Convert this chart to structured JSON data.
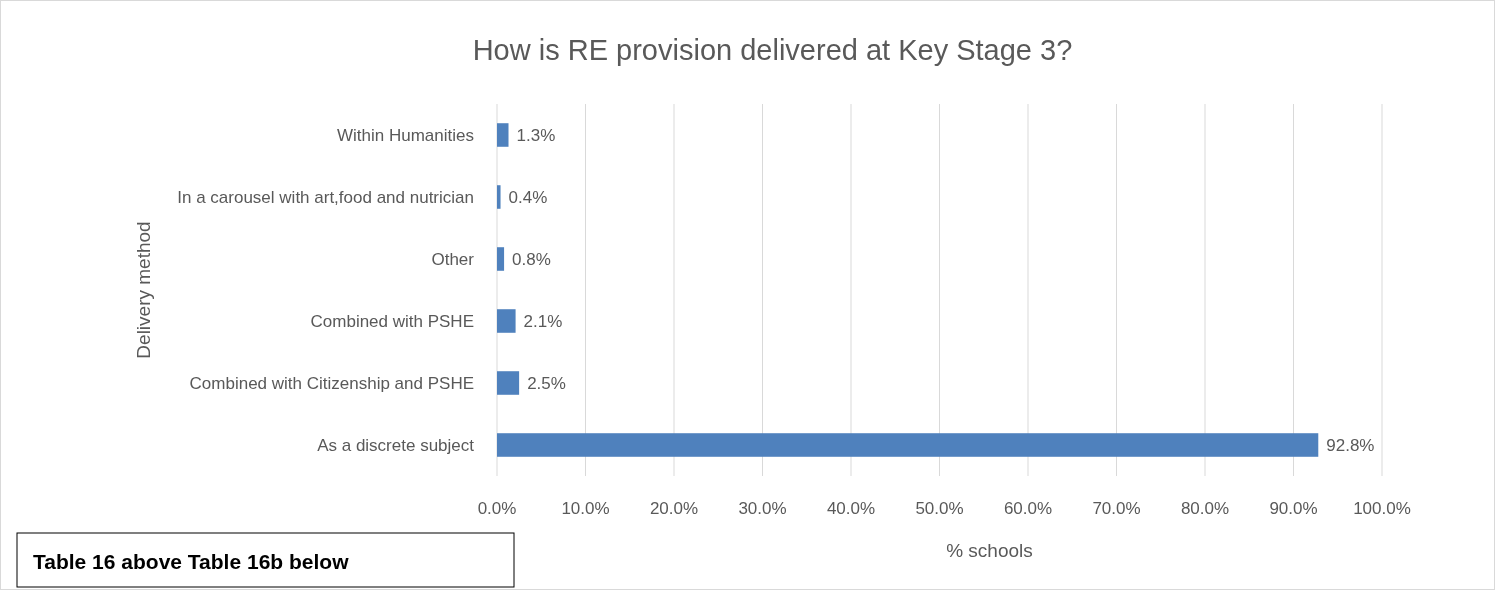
{
  "chart_data": {
    "type": "bar",
    "orientation": "horizontal",
    "title": "How is RE provision delivered at Key Stage 3?",
    "xlabel": "% schools",
    "ylabel": "Delivery method",
    "categories": [
      "Within Humanities",
      "In a carousel with art,food and nutrician",
      "Other",
      "Combined with PSHE",
      "Combined with Citizenship and PSHE",
      "As a discrete subject"
    ],
    "values": [
      1.3,
      0.4,
      0.8,
      2.1,
      2.5,
      92.8
    ],
    "value_labels": [
      "1.3%",
      "0.4%",
      "0.8%",
      "2.1%",
      "2.5%",
      "92.8%"
    ],
    "color": "#4f81bd",
    "xlim": [
      0,
      100
    ],
    "xticks": [
      {
        "value": 0,
        "label": "0.0%"
      },
      {
        "value": 10,
        "label": "10.0%"
      },
      {
        "value": 20,
        "label": "20.0%"
      },
      {
        "value": 30,
        "label": "30.0%"
      },
      {
        "value": 40,
        "label": "40.0%"
      },
      {
        "value": 50,
        "label": "50.0%"
      },
      {
        "value": 60,
        "label": "60.0%"
      },
      {
        "value": 70,
        "label": "70.0%"
      },
      {
        "value": 80,
        "label": "80.0%"
      },
      {
        "value": 90,
        "label": "90.0%"
      },
      {
        "value": 100,
        "label": "100.0%"
      }
    ],
    "grid": "x",
    "annotations": [
      "Table 16 above Table 16b below"
    ]
  }
}
